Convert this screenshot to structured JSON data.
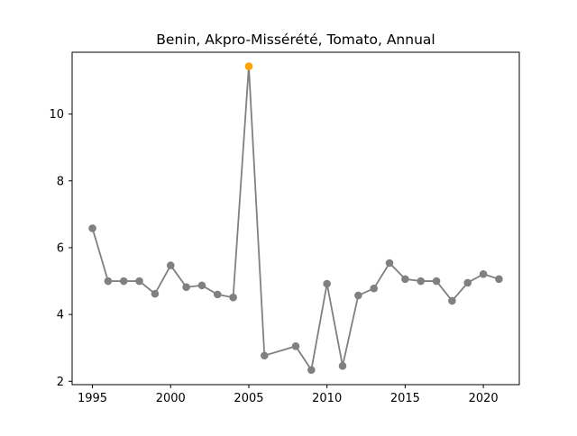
{
  "chart_data": {
    "type": "line",
    "title": "Benin, Akpro-Missérété, Tomato, Annual",
    "xlabel": "",
    "ylabel": "",
    "xlim": [
      1993.7,
      2022.3
    ],
    "ylim": [
      1.9,
      11.85
    ],
    "xticks": [
      1995,
      2000,
      2005,
      2010,
      2015,
      2020
    ],
    "yticks": [
      2,
      4,
      6,
      8,
      10
    ],
    "grid": false,
    "legend": null,
    "line_color": "#808080",
    "highlight_color": "#ffa500",
    "series": [
      {
        "x": [
          1995,
          1996,
          1997,
          1998,
          1999,
          2000,
          2001,
          2002,
          2003,
          2004,
          2005,
          2006,
          2008,
          2009,
          2010,
          2011,
          2012,
          2013,
          2014,
          2015,
          2016,
          2017,
          2018,
          2019,
          2020,
          2021
        ],
        "values": [
          6.58,
          5.0,
          5.0,
          5.0,
          4.62,
          5.47,
          4.82,
          4.87,
          4.6,
          4.51,
          11.43,
          2.77,
          3.05,
          2.34,
          4.92,
          2.46,
          4.57,
          4.78,
          5.54,
          5.06,
          5.0,
          5.0,
          4.41,
          4.95,
          5.21,
          5.06
        ],
        "highlight_index": 10
      }
    ]
  }
}
